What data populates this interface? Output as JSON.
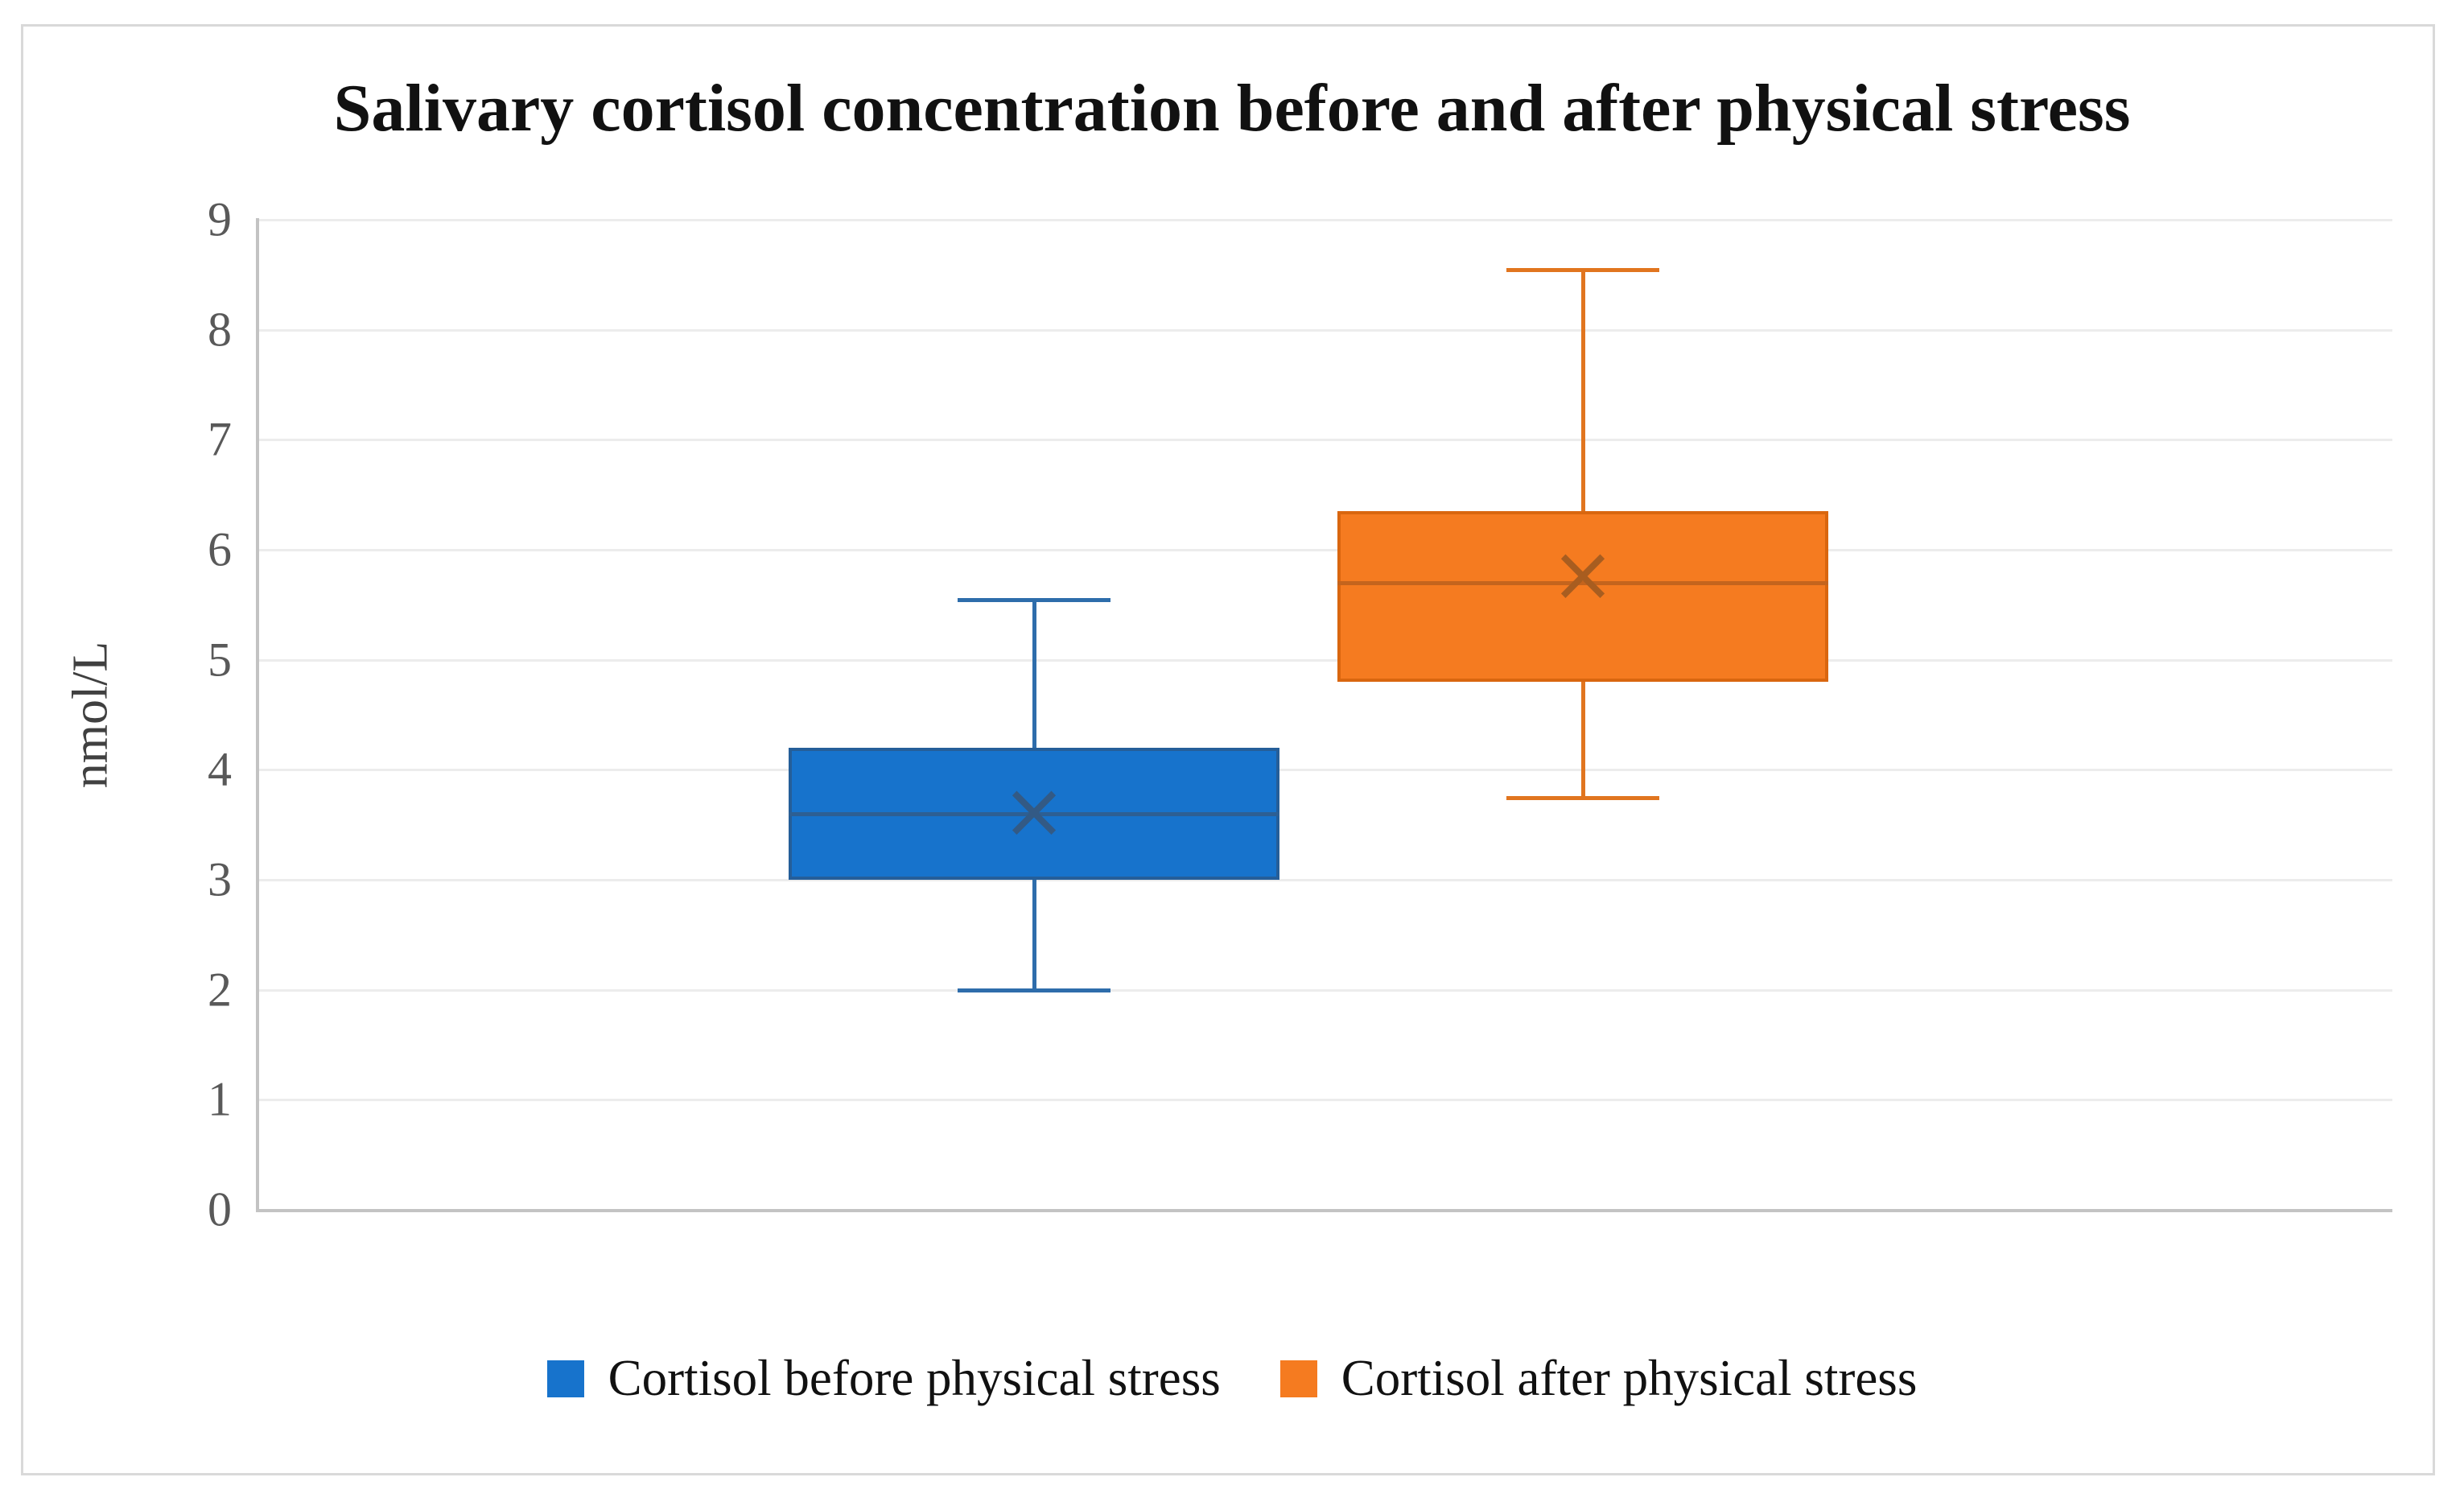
{
  "title": "Salivary cortisol concentration before and after physical stress",
  "y_axis": {
    "label": "nmol/L",
    "ticks": [
      "9",
      "8",
      "7",
      "6",
      "5",
      "4",
      "3",
      "2",
      "1",
      "0"
    ],
    "min": 0,
    "max": 9
  },
  "legend": {
    "items": [
      {
        "label": "Cortisol before physical stress",
        "color": "#1773cc"
      },
      {
        "label": "Cortisol after physical stress",
        "color": "#f57b20"
      }
    ]
  },
  "colors": {
    "gridline": "#ececec",
    "axis_line": "#c3c3c3",
    "tick_text": "#595959",
    "title_text": "#111111"
  },
  "chart_data": {
    "type": "box",
    "title": "Salivary cortisol concentration before and after physical stress",
    "ylabel": "nmol/L",
    "ylim": [
      0,
      9
    ],
    "grid": true,
    "legend_position": "bottom",
    "series": [
      {
        "name": "Cortisol before physical stress",
        "min": 2.0,
        "q1": 3.0,
        "median": 3.6,
        "q3": 4.2,
        "max": 5.55,
        "mean": 3.6,
        "fill": "#1773cc",
        "border": "#255e99",
        "whisker": "#2e6dab",
        "median_color": "#2d5f93",
        "mean_color": "#335a85"
      },
      {
        "name": "Cortisol after physical stress",
        "min": 3.75,
        "q1": 4.8,
        "median": 5.7,
        "q3": 6.35,
        "max": 8.55,
        "mean": 5.75,
        "fill": "#f57b20",
        "border": "#d9660f",
        "whisker": "#e1751f",
        "median_color": "#c4641d",
        "mean_color": "#a85d20"
      }
    ]
  }
}
